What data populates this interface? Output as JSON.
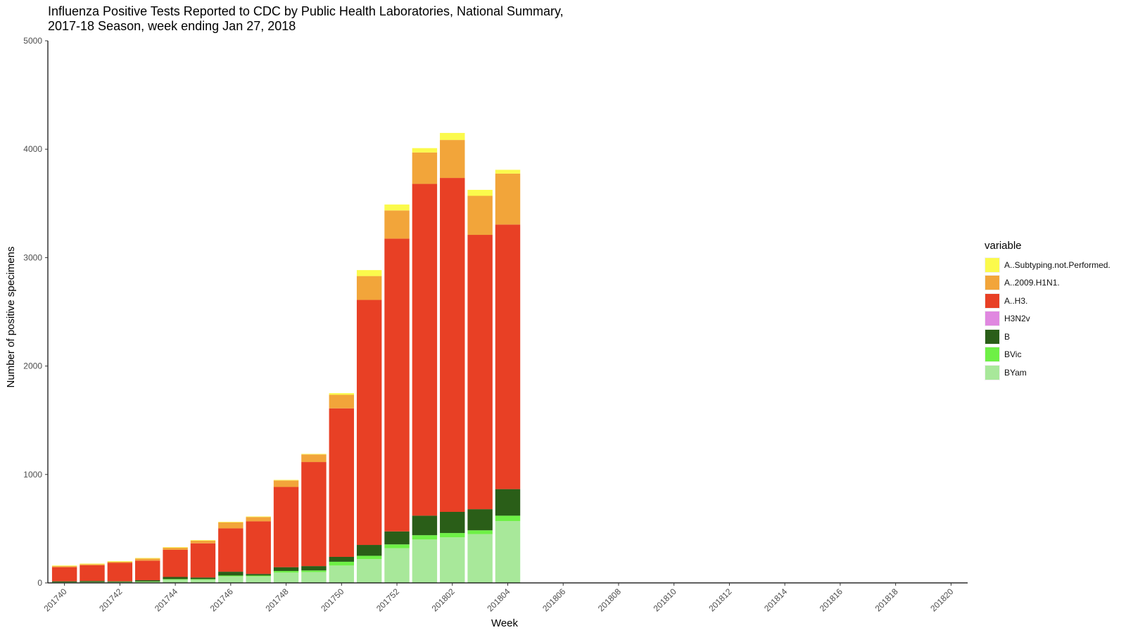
{
  "chart_data": {
    "type": "bar",
    "stacked": true,
    "title_line1": "Influenza Positive Tests Reported to CDC by Public Health Laboratories, National Summary,",
    "title_line2": "2017-18 Season, week ending Jan 27, 2018",
    "xlabel": "Week",
    "ylabel": "Number of positive specimens",
    "ylim": [
      0,
      5000
    ],
    "yticks": [
      0,
      1000,
      2000,
      3000,
      4000,
      5000
    ],
    "categories": [
      "201740",
      "201741",
      "201742",
      "201743",
      "201744",
      "201745",
      "201746",
      "201747",
      "201748",
      "201749",
      "201750",
      "201751",
      "201752",
      "201801",
      "201802",
      "201803",
      "201804",
      "201805",
      "201806",
      "201807",
      "201808",
      "201809",
      "201810",
      "201811",
      "201812",
      "201813",
      "201814",
      "201815",
      "201816",
      "201817",
      "201818",
      "201819",
      "201820"
    ],
    "xtick_labels": [
      "201740",
      "201742",
      "201744",
      "201746",
      "201748",
      "201750",
      "201752",
      "201802",
      "201804",
      "201806",
      "201808",
      "201810",
      "201812",
      "201814",
      "201816",
      "201818",
      "201820"
    ],
    "legend_title": "variable",
    "series": [
      {
        "name": "BYam",
        "color": "#a8e89a",
        "values": [
          5,
          6,
          7,
          10,
          30,
          30,
          60,
          60,
          95,
          100,
          160,
          220,
          320,
          400,
          420,
          450,
          570,
          0,
          0,
          0,
          0,
          0,
          0,
          0,
          0,
          0,
          0,
          0,
          0,
          0,
          0,
          0,
          0
        ]
      },
      {
        "name": "BVic",
        "color": "#6ef046",
        "values": [
          2,
          2,
          2,
          3,
          5,
          5,
          8,
          8,
          15,
          15,
          35,
          30,
          35,
          40,
          40,
          35,
          50,
          0,
          0,
          0,
          0,
          0,
          0,
          0,
          0,
          0,
          0,
          0,
          0,
          0,
          0,
          0,
          0
        ]
      },
      {
        "name": "B",
        "color": "#2a5e18",
        "values": [
          8,
          10,
          6,
          12,
          20,
          15,
          35,
          15,
          35,
          40,
          45,
          100,
          120,
          180,
          195,
          195,
          245,
          0,
          0,
          0,
          0,
          0,
          0,
          0,
          0,
          0,
          0,
          0,
          0,
          0,
          0,
          0,
          0
        ]
      },
      {
        "name": "H3N2v",
        "color": "#e088e0",
        "values": [
          0,
          0,
          0,
          0,
          0,
          0,
          0,
          0,
          0,
          0,
          0,
          0,
          0,
          0,
          0,
          0,
          0,
          0,
          0,
          0,
          0,
          0,
          0,
          0,
          0,
          0,
          0,
          0,
          0,
          0,
          0,
          0,
          0
        ]
      },
      {
        "name": "A..H3.",
        "color": "#e84025",
        "values": [
          130,
          145,
          170,
          180,
          250,
          315,
          400,
          485,
          740,
          960,
          1370,
          2260,
          2700,
          3060,
          3080,
          2530,
          2440,
          0,
          0,
          0,
          0,
          0,
          0,
          0,
          0,
          0,
          0,
          0,
          0,
          0,
          0,
          0,
          0
        ]
      },
      {
        "name": "A..2009.H1N1.",
        "color": "#f2a53a",
        "values": [
          10,
          10,
          10,
          20,
          20,
          25,
          55,
          40,
          60,
          70,
          125,
          220,
          260,
          290,
          350,
          360,
          470,
          0,
          0,
          0,
          0,
          0,
          0,
          0,
          0,
          0,
          0,
          0,
          0,
          0,
          0,
          0,
          0
        ]
      },
      {
        "name": "A..Subtyping.not.Performed.",
        "color": "#fbfa4c",
        "values": [
          5,
          5,
          5,
          5,
          5,
          5,
          5,
          5,
          5,
          5,
          15,
          55,
          55,
          40,
          65,
          55,
          35,
          0,
          0,
          0,
          0,
          0,
          0,
          0,
          0,
          0,
          0,
          0,
          0,
          0,
          0,
          0,
          0
        ]
      }
    ],
    "legend_order": [
      "A..Subtyping.not.Performed.",
      "A..2009.H1N1.",
      "A..H3.",
      "H3N2v",
      "B",
      "BVic",
      "BYam"
    ]
  }
}
